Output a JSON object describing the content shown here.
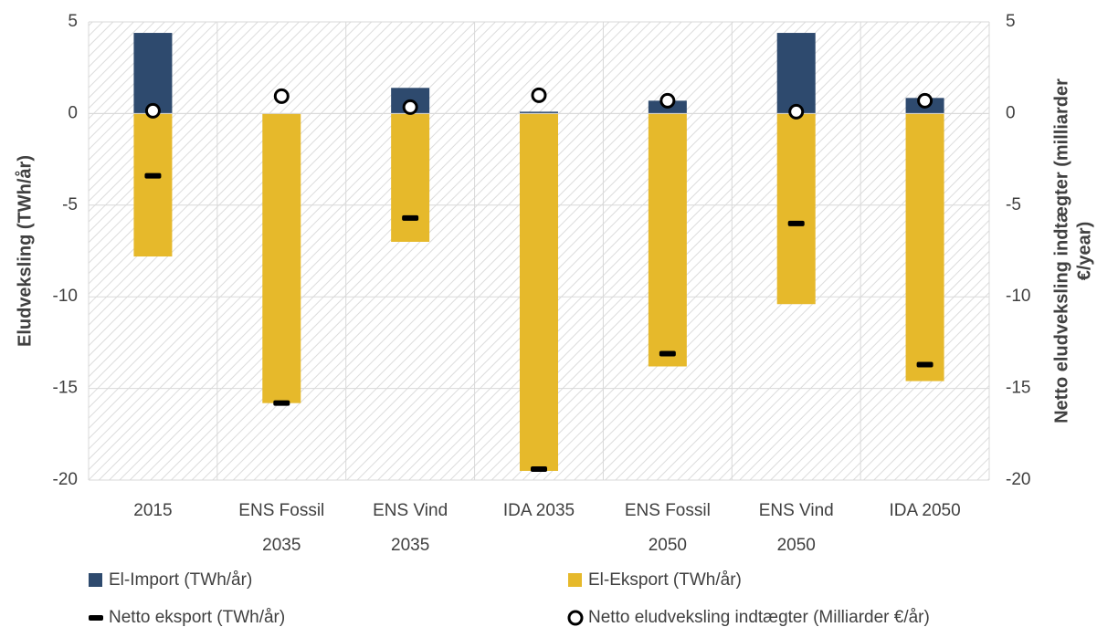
{
  "chart_data": {
    "type": "bar",
    "categories": [
      "2015",
      "ENS Fossil 2035",
      "ENS Vind 2035",
      "IDA 2035",
      "ENS Fossil 2050",
      "ENS Vind 2050",
      "IDA 2050"
    ],
    "series": [
      {
        "name": "El-Import (TWh/år)",
        "color": "#2e4a6e",
        "values": [
          4.4,
          0,
          1.4,
          0.1,
          0.7,
          4.4,
          0.85
        ]
      },
      {
        "name": "El-Eksport (TWh/år)",
        "color": "#e6b92b",
        "values": [
          -7.8,
          -15.8,
          -7.0,
          -19.5,
          -13.8,
          -10.4,
          -14.6
        ]
      },
      {
        "name": "Netto eksport (TWh/år)",
        "color": "#000000",
        "marker": "dash",
        "values": [
          -3.4,
          -15.8,
          -5.7,
          -19.4,
          -13.1,
          -6.0,
          -13.7
        ]
      },
      {
        "name": "Netto eludveksling indtægter (Milliarder €/år)",
        "color": "#000000",
        "marker": "circle",
        "axis": "y2",
        "values": [
          0.15,
          0.95,
          0.35,
          1.0,
          0.7,
          0.1,
          0.7
        ]
      }
    ],
    "ylabel": "Eludveksling (TWh/år)",
    "y2label": [
      "Netto eludveksling indtægter (milliarder",
      "€/year)"
    ],
    "ylim": [
      -20,
      5
    ],
    "yticks": [
      -20,
      -15,
      -10,
      -5,
      0,
      5
    ],
    "y2lim": [
      -20,
      5
    ],
    "y2ticks": [
      -20,
      -15,
      -10,
      -5,
      0,
      5
    ],
    "grid": true,
    "legend": "bottom"
  }
}
